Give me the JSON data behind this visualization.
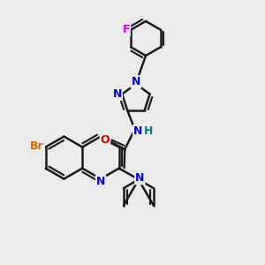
{
  "bg_color": "#ebebeb",
  "bond_color": "#1a1a1a",
  "bond_width": 1.8,
  "dbl_sep": 0.12,
  "atom_colors": {
    "N": "#0000cc",
    "O": "#cc0000",
    "F": "#cc00cc",
    "Br": "#cc6600",
    "NH_H": "#008080",
    "C": "#1a1a1a"
  },
  "font_size": 9.0,
  "fig_size": [
    3.0,
    3.0
  ],
  "dpi": 100
}
